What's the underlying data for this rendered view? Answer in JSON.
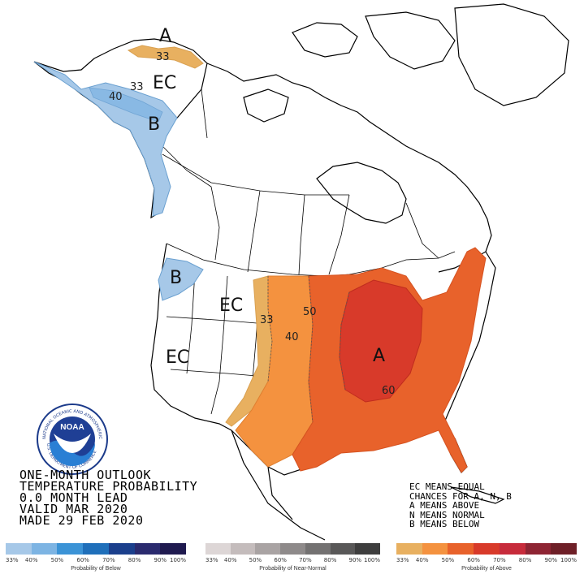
{
  "title_lines": [
    "ONE-MONTH OUTLOOK",
    "TEMPERATURE PROBABILITY",
    "0.0 MONTH LEAD",
    "VALID MAR 2020",
    "MADE 29 FEB 2020"
  ],
  "legend_lines": [
    "EC MEANS EQUAL",
    "CHANCES FOR A, N, B",
    "A MEANS ABOVE",
    "N MEANS NORMAL",
    "B MEANS BELOW"
  ],
  "map_labels": {
    "alaska_a": "A",
    "alaska_ec": "EC",
    "alaska_b": "B",
    "pnw_b": "B",
    "mtn_ec": "EC",
    "west_ec": "EC",
    "east_a": "A"
  },
  "contour_labels": {
    "ak_33_top": "33",
    "ak_33_mid": "33",
    "ak_40": "40",
    "us_33": "33",
    "us_40": "40",
    "us_50": "50",
    "us_60": "60"
  },
  "logo": {
    "text": "NOAA",
    "ring_top": "NATIONAL OCEANIC AND ATMOSPHERIC ADMINISTRATION",
    "ring_bottom": "U.S. DEPARTMENT OF COMMERCE"
  },
  "scales": {
    "below": {
      "caption": "Probability of Below",
      "ticks": [
        "33%",
        "40%",
        "50%",
        "60%",
        "70%",
        "80%",
        "90%",
        "100%"
      ],
      "colors": [
        "#a6c8e8",
        "#7db4e3",
        "#3b93d6",
        "#1f6fba",
        "#1b3f8c",
        "#2a2a6e",
        "#1f1a4f"
      ]
    },
    "normal": {
      "caption": "Probability of Near-Normal",
      "ticks": [
        "33%",
        "40%",
        "50%",
        "60%",
        "70%",
        "80%",
        "90%",
        "100%"
      ],
      "colors": [
        "#ddd6d6",
        "#c4bcbc",
        "#a9a3a3",
        "#8e8a8a",
        "#737171",
        "#595858",
        "#3e3e3e"
      ]
    },
    "above": {
      "caption": "Probability of Above",
      "ticks": [
        "33%",
        "40%",
        "50%",
        "60%",
        "70%",
        "80%",
        "90%",
        "100%"
      ],
      "colors": [
        "#e8b060",
        "#f4923f",
        "#e8622b",
        "#d83a2a",
        "#c72b3b",
        "#8e2433",
        "#6e1f27"
      ]
    }
  }
}
